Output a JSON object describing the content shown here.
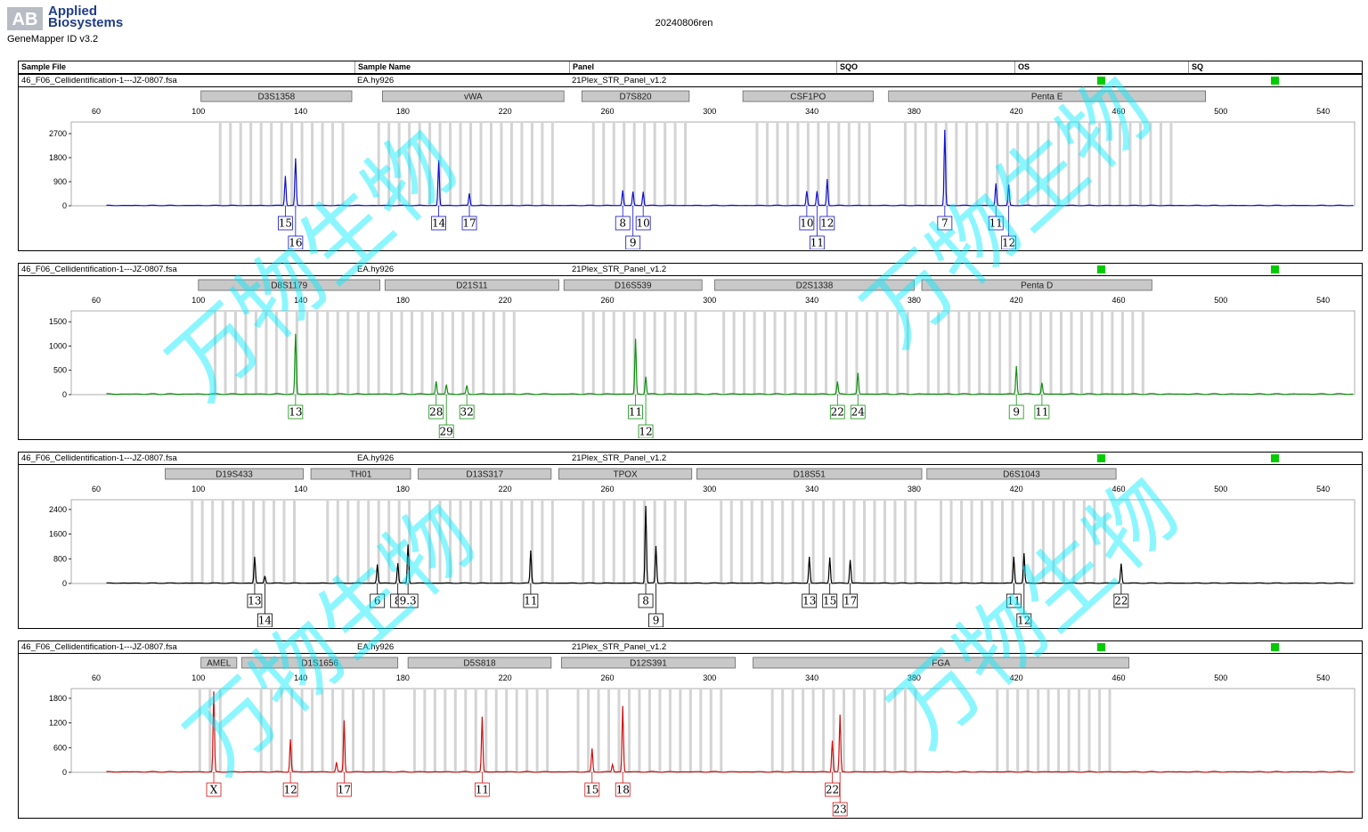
{
  "header": {
    "logo_mark": "AB",
    "logo_line1": "Applied",
    "logo_line2": "Biosystems",
    "software": "GeneMapper ID v3.2",
    "run_title": "20240806ren",
    "columns": [
      "Sample File",
      "Sample Name",
      "Panel",
      "SQO",
      "OS",
      "SQ"
    ]
  },
  "watermark": "万物生物",
  "chart_data": [
    {
      "type": "line",
      "dye": "blue",
      "color": "#1010cc",
      "sample_file": "46_F06_Cellidentification-1---JZ-0807.fsa",
      "sample_name": "EA.hy926",
      "panel": "21Plex_STR_Panel_v1.2",
      "x_ticks": [
        60,
        100,
        140,
        180,
        220,
        260,
        300,
        340,
        380,
        420,
        460,
        500,
        540
      ],
      "y_ticks": [
        0,
        900,
        1800,
        2700
      ],
      "ymax": 3000,
      "markers": [
        {
          "name": "D3S1358",
          "start": 101,
          "end": 160
        },
        {
          "name": "vWA",
          "start": 172,
          "end": 243
        },
        {
          "name": "D7S820",
          "start": 250,
          "end": 292
        },
        {
          "name": "CSF1PO",
          "start": 313,
          "end": 364
        },
        {
          "name": "Penta E",
          "start": 370,
          "end": 494
        }
      ],
      "bins": [
        [
          108,
          159
        ],
        [
          170,
          240
        ],
        [
          254,
          292
        ],
        [
          318,
          363
        ],
        [
          376,
          482
        ]
      ],
      "peaks": [
        {
          "x": 134,
          "h": 1100
        },
        {
          "x": 138,
          "h": 1750
        },
        {
          "x": 194,
          "h": 1680
        },
        {
          "x": 206,
          "h": 450
        },
        {
          "x": 266,
          "h": 560
        },
        {
          "x": 270,
          "h": 510
        },
        {
          "x": 274,
          "h": 510
        },
        {
          "x": 338,
          "h": 530
        },
        {
          "x": 342,
          "h": 530
        },
        {
          "x": 346,
          "h": 980
        },
        {
          "x": 392,
          "h": 2820
        },
        {
          "x": 412,
          "h": 820
        },
        {
          "x": 417,
          "h": 770
        }
      ],
      "alleles": [
        {
          "label": "15",
          "x": 134,
          "row": 1
        },
        {
          "label": "16",
          "x": 138,
          "row": 2
        },
        {
          "label": "14",
          "x": 194,
          "row": 1
        },
        {
          "label": "17",
          "x": 206,
          "row": 1
        },
        {
          "label": "8",
          "x": 266,
          "row": 1
        },
        {
          "label": "9",
          "x": 270,
          "row": 2
        },
        {
          "label": "10",
          "x": 274,
          "row": 1
        },
        {
          "label": "10",
          "x": 338,
          "row": 1
        },
        {
          "label": "11",
          "x": 342,
          "row": 2
        },
        {
          "label": "12",
          "x": 346,
          "row": 1
        },
        {
          "label": "7",
          "x": 392,
          "row": 1
        },
        {
          "label": "11",
          "x": 412,
          "row": 1
        },
        {
          "label": "12",
          "x": 417,
          "row": 2
        }
      ]
    },
    {
      "type": "line",
      "dye": "green",
      "color": "#109010",
      "sample_file": "46_F06_Cellidentification-1---JZ-0807.fsa",
      "sample_name": "EA.hy926",
      "panel": "21Plex_STR_Panel_v1.2",
      "x_ticks": [
        60,
        100,
        140,
        180,
        220,
        260,
        300,
        340,
        380,
        420,
        460,
        500,
        540
      ],
      "y_ticks": [
        0,
        500,
        1000,
        1500
      ],
      "ymax": 1650,
      "markers": [
        {
          "name": "D8S1179",
          "start": 100,
          "end": 171
        },
        {
          "name": "D21S11",
          "start": 173,
          "end": 241
        },
        {
          "name": "D16S539",
          "start": 243,
          "end": 297
        },
        {
          "name": "D2S1338",
          "start": 302,
          "end": 380
        },
        {
          "name": "Penta D",
          "start": 383,
          "end": 473
        }
      ],
      "bins": [
        [
          106,
          170
        ],
        [
          175,
          226
        ],
        [
          250,
          294
        ],
        [
          305,
          378
        ],
        [
          385,
          472
        ]
      ],
      "peaks": [
        {
          "x": 138,
          "h": 1230
        },
        {
          "x": 193,
          "h": 260
        },
        {
          "x": 197,
          "h": 190
        },
        {
          "x": 205,
          "h": 170
        },
        {
          "x": 271,
          "h": 1130
        },
        {
          "x": 275,
          "h": 360
        },
        {
          "x": 350,
          "h": 250
        },
        {
          "x": 358,
          "h": 430
        },
        {
          "x": 420,
          "h": 580
        },
        {
          "x": 430,
          "h": 230
        }
      ],
      "alleles": [
        {
          "label": "13",
          "x": 138,
          "row": 1
        },
        {
          "label": "28",
          "x": 193,
          "row": 1
        },
        {
          "label": "29",
          "x": 197,
          "row": 2
        },
        {
          "label": "32",
          "x": 205,
          "row": 1
        },
        {
          "label": "11",
          "x": 271,
          "row": 1
        },
        {
          "label": "12",
          "x": 275,
          "row": 2
        },
        {
          "label": "22",
          "x": 350,
          "row": 1
        },
        {
          "label": "24",
          "x": 358,
          "row": 1
        },
        {
          "label": "9",
          "x": 420,
          "row": 1
        },
        {
          "label": "11",
          "x": 430,
          "row": 1
        }
      ]
    },
    {
      "type": "line",
      "dye": "black",
      "color": "#000000",
      "sample_file": "46_F06_Cellidentification-1---JZ-0807.fsa",
      "sample_name": "EA.hy926",
      "panel": "21Plex_STR_Panel_v1.2",
      "x_ticks": [
        60,
        100,
        140,
        180,
        220,
        260,
        300,
        340,
        380,
        420,
        460,
        500,
        540
      ],
      "y_ticks": [
        0,
        800,
        1600,
        2400
      ],
      "ymax": 2600,
      "markers": [
        {
          "name": "D19S433",
          "start": 87,
          "end": 141
        },
        {
          "name": "TH01",
          "start": 144,
          "end": 183
        },
        {
          "name": "D13S317",
          "start": 186,
          "end": 238
        },
        {
          "name": "TPOX",
          "start": 241,
          "end": 293
        },
        {
          "name": "D18S51",
          "start": 295,
          "end": 383
        },
        {
          "name": "D6S1043",
          "start": 385,
          "end": 459
        }
      ],
      "bins": [
        [
          97,
          140
        ],
        [
          150,
          184
        ],
        [
          190,
          238
        ],
        [
          250,
          292
        ],
        [
          304,
          380
        ],
        [
          390,
          455
        ]
      ],
      "peaks": [
        {
          "x": 122,
          "h": 850
        },
        {
          "x": 126,
          "h": 230
        },
        {
          "x": 170,
          "h": 600
        },
        {
          "x": 178,
          "h": 640
        },
        {
          "x": 182,
          "h": 1250
        },
        {
          "x": 230,
          "h": 1050
        },
        {
          "x": 275,
          "h": 2500
        },
        {
          "x": 279,
          "h": 1200
        },
        {
          "x": 339,
          "h": 850
        },
        {
          "x": 347,
          "h": 830
        },
        {
          "x": 355,
          "h": 750
        },
        {
          "x": 419,
          "h": 850
        },
        {
          "x": 423,
          "h": 960
        },
        {
          "x": 461,
          "h": 630
        }
      ],
      "alleles": [
        {
          "label": "13",
          "x": 122,
          "row": 1
        },
        {
          "label": "14",
          "x": 126,
          "row": 2
        },
        {
          "label": "6",
          "x": 170,
          "row": 1
        },
        {
          "label": "8",
          "x": 178,
          "row": 1
        },
        {
          "label": "9.3",
          "x": 182,
          "row": 1
        },
        {
          "label": "11",
          "x": 230,
          "row": 1
        },
        {
          "label": "8",
          "x": 275,
          "row": 1
        },
        {
          "label": "9",
          "x": 279,
          "row": 2
        },
        {
          "label": "13",
          "x": 339,
          "row": 1
        },
        {
          "label": "15",
          "x": 347,
          "row": 1
        },
        {
          "label": "17",
          "x": 355,
          "row": 1
        },
        {
          "label": "11",
          "x": 419,
          "row": 1
        },
        {
          "label": "12",
          "x": 423,
          "row": 2
        },
        {
          "label": "22",
          "x": 461,
          "row": 1
        }
      ]
    },
    {
      "type": "line",
      "dye": "red",
      "color": "#d01010",
      "sample_file": "46_F06_Cellidentification-1---JZ-0807.fsa",
      "sample_name": "EA.hy926",
      "panel": "21Plex_STR_Panel_v1.2",
      "x_ticks": [
        60,
        100,
        140,
        180,
        220,
        260,
        300,
        340,
        380,
        420,
        460,
        500,
        540
      ],
      "y_ticks": [
        0,
        600,
        1200,
        1800
      ],
      "ymax": 1950,
      "markers": [
        {
          "name": "AMEL",
          "start": 101,
          "end": 115
        },
        {
          "name": "D1S1656",
          "start": 117,
          "end": 178
        },
        {
          "name": "D5S818",
          "start": 182,
          "end": 238
        },
        {
          "name": "D12S391",
          "start": 242,
          "end": 310
        },
        {
          "name": "FGA",
          "start": 317,
          "end": 464
        }
      ],
      "bins": [
        [
          100,
          108
        ],
        [
          124,
          172
        ],
        [
          184,
          236
        ],
        [
          248,
          307
        ],
        [
          324,
          382
        ],
        [
          412,
          456
        ]
      ],
      "peaks": [
        {
          "x": 106,
          "h": 1950
        },
        {
          "x": 136,
          "h": 790
        },
        {
          "x": 154,
          "h": 230
        },
        {
          "x": 157,
          "h": 1250
        },
        {
          "x": 211,
          "h": 1330
        },
        {
          "x": 254,
          "h": 560
        },
        {
          "x": 262,
          "h": 180
        },
        {
          "x": 266,
          "h": 1600
        },
        {
          "x": 348,
          "h": 760
        },
        {
          "x": 351,
          "h": 1380
        }
      ],
      "alleles": [
        {
          "label": "X",
          "x": 106,
          "row": 1
        },
        {
          "label": "12",
          "x": 136,
          "row": 1
        },
        {
          "label": "17",
          "x": 157,
          "row": 1
        },
        {
          "label": "11",
          "x": 211,
          "row": 1
        },
        {
          "label": "15",
          "x": 254,
          "row": 1
        },
        {
          "label": "18",
          "x": 266,
          "row": 1
        },
        {
          "label": "22",
          "x": 348,
          "row": 1
        },
        {
          "label": "23",
          "x": 351,
          "row": 2
        }
      ]
    }
  ]
}
